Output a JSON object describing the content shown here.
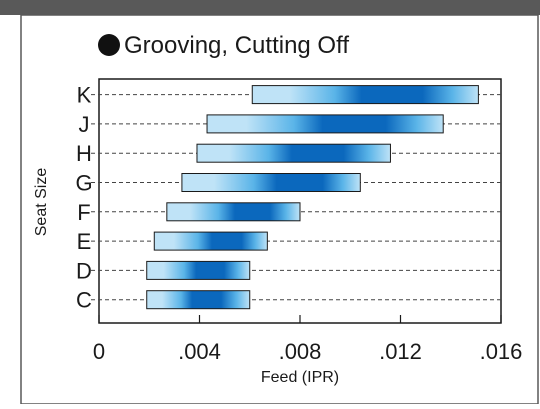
{
  "chart_data": {
    "type": "bar",
    "title": "Grooving, Cutting Off",
    "xlabel": "Feed (IPR)",
    "ylabel": "Seat Size",
    "xlim": [
      0,
      0.016
    ],
    "xticks": [
      0,
      0.004,
      0.008,
      0.012,
      0.016
    ],
    "xtick_labels": [
      "0",
      ".004",
      ".008",
      ".012",
      ".016"
    ],
    "grid": "horizontal-dashed",
    "categories": [
      "K",
      "J",
      "H",
      "G",
      "F",
      "E",
      "D",
      "C"
    ],
    "ranges": [
      {
        "category": "K",
        "min": 0.0061,
        "max": 0.0151,
        "peak": 0.0114
      },
      {
        "category": "J",
        "min": 0.0043,
        "max": 0.0137,
        "peak": 0.0099
      },
      {
        "category": "H",
        "min": 0.0039,
        "max": 0.0116,
        "peak": 0.0085
      },
      {
        "category": "G",
        "min": 0.0033,
        "max": 0.0104,
        "peak": 0.0079
      },
      {
        "category": "F",
        "min": 0.0027,
        "max": 0.008,
        "peak": 0.006
      },
      {
        "category": "E",
        "min": 0.0022,
        "max": 0.0067,
        "peak": 0.005
      },
      {
        "category": "D",
        "min": 0.0019,
        "max": 0.006,
        "peak": 0.0043
      },
      {
        "category": "C",
        "min": 0.0019,
        "max": 0.006,
        "peak": 0.0041
      }
    ],
    "colors": {
      "light": "#bfe3f7",
      "mid": "#5ab4e8",
      "dark": "#0b68bd",
      "header_bar": "#595959",
      "grid": "#444444"
    }
  }
}
